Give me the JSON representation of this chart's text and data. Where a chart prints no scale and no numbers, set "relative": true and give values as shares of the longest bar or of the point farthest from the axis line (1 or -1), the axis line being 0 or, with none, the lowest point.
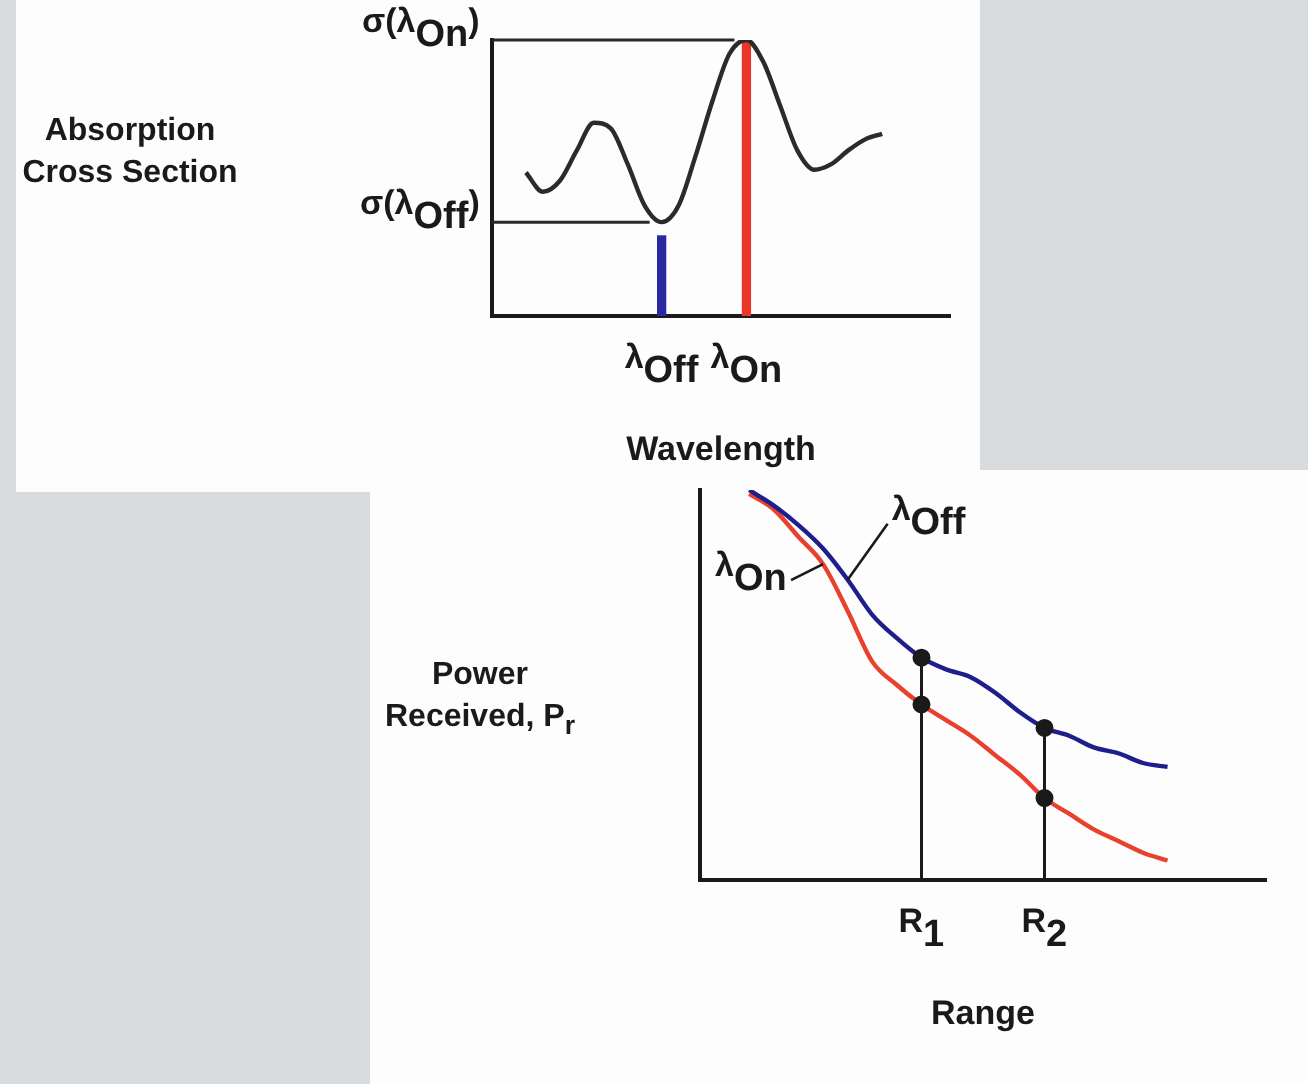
{
  "chart_data": [
    {
      "type": "line",
      "relative": true,
      "xlabel": "Wavelength",
      "ylabel": "Absorption Cross Section",
      "categories": [
        null,
        null,
        null,
        null,
        null,
        null,
        null,
        null,
        null,
        null,
        "λ$_{Off}$",
        null,
        null,
        null,
        null,
        "λ$_{On}$",
        null,
        null,
        null,
        null,
        null,
        null,
        null,
        null,
        null,
        null,
        null,
        null
      ],
      "series": [
        {
          "color": "#2b2b2b",
          "values": [
            null,
            null,
            0.52,
            0.45,
            0.49,
            0.6,
            0.7,
            0.68,
            0.55,
            0.4,
            0.34,
            0.4,
            0.58,
            0.78,
            0.95,
            1.0,
            0.92,
            0.76,
            0.6,
            0.53,
            0.55,
            0.6,
            0.64,
            0.66,
            null,
            null,
            null,
            null
          ]
        },
        {
          "type": "bar",
          "colors": [
            null,
            null,
            null,
            null,
            null,
            null,
            null,
            null,
            null,
            null,
            "#2a2aa0",
            null,
            null,
            null,
            null,
            "#e8372a",
            null,
            null,
            null,
            null,
            null,
            null,
            null,
            null,
            null,
            null,
            null,
            null
          ],
          "values": [
            null,
            null,
            null,
            null,
            null,
            null,
            null,
            null,
            null,
            null,
            0.29,
            null,
            null,
            null,
            null,
            1.0,
            null,
            null,
            null,
            null,
            null,
            null,
            null,
            null,
            null,
            null,
            null,
            null
          ]
        }
      ],
      "ref_lines": [
        {
          "axis": "y",
          "value": 1.0,
          "label": "σ(λ$_{On}$)",
          "color": "#2b2b2b"
        },
        {
          "axis": "y",
          "value": 0.34,
          "label": "σ(λ$_{Off}$)",
          "color": "#2b2b2b"
        }
      ]
    },
    {
      "type": "line",
      "relative": true,
      "xlabel": "Range",
      "ylabel": "Power Received, P$_{r}$",
      "categories": [
        null,
        null,
        null,
        null,
        null,
        null,
        null,
        null,
        null,
        "R$_{1}$",
        null,
        null,
        null,
        null,
        "R$_{2}$",
        null,
        null,
        null,
        null,
        null,
        null,
        null,
        null,
        null
      ],
      "series": [
        {
          "name": "λ$_{Off}$",
          "color": "#1e1e8c",
          "values": [
            null,
            null,
            1.0,
            0.96,
            0.91,
            0.85,
            0.77,
            0.68,
            0.62,
            0.57,
            0.54,
            0.52,
            0.48,
            0.43,
            0.39,
            0.37,
            0.34,
            0.325,
            0.3,
            0.29,
            null,
            null,
            null,
            null
          ]
        },
        {
          "name": "λ$_{On}$",
          "color": "#e8412e",
          "values": [
            null,
            null,
            0.99,
            0.95,
            0.88,
            0.81,
            0.69,
            0.56,
            0.5,
            0.45,
            0.41,
            0.37,
            0.32,
            0.27,
            0.21,
            0.17,
            0.13,
            0.1,
            0.07,
            0.05,
            null,
            null,
            null,
            null
          ]
        },
        {
          "type": "lollipop",
          "color": "#1a1a1a",
          "x": [
            "R$_{1}$",
            "R$_{1}$",
            "R$_{2}$",
            "R$_{2}$"
          ],
          "values": [
            0.57,
            0.45,
            0.39,
            0.21
          ]
        }
      ]
    }
  ]
}
